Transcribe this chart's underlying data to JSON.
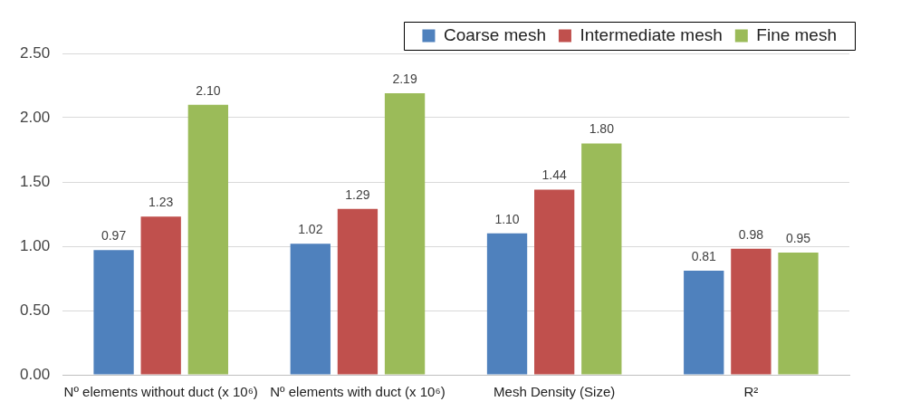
{
  "chart_data": {
    "type": "bar",
    "categories": [
      "Nº elements without duct (x 10⁶)",
      "Nº elements with duct (x 10⁶)",
      "Mesh Density (Size)",
      "R²"
    ],
    "series": [
      {
        "name": "Coarse mesh",
        "color": "#4f81bd",
        "values": [
          0.97,
          1.02,
          1.1,
          0.81
        ],
        "value_labels": [
          "0.97",
          "1.02",
          "1.10",
          "0.81"
        ]
      },
      {
        "name": "Intermediate mesh",
        "color": "#c0504d",
        "values": [
          1.23,
          1.29,
          1.44,
          0.98
        ],
        "value_labels": [
          "1.23",
          "1.29",
          "1.44",
          "0.98"
        ]
      },
      {
        "name": "Fine mesh",
        "color": "#9bbb59",
        "values": [
          2.1,
          2.19,
          1.8,
          0.95
        ],
        "value_labels": [
          "2.10",
          "2.19",
          "1.80",
          "0.95"
        ]
      }
    ],
    "ylim": [
      0,
      2.5
    ],
    "yticks": [
      {
        "value": 0,
        "label": "0.00"
      },
      {
        "value": 0.5,
        "label": "0.50"
      },
      {
        "value": 1,
        "label": "1.00"
      },
      {
        "value": 1.5,
        "label": "1.50"
      },
      {
        "value": 2,
        "label": "2.00"
      },
      {
        "value": 2.5,
        "label": "2.50"
      }
    ],
    "grid": "y",
    "legend": "top right"
  }
}
